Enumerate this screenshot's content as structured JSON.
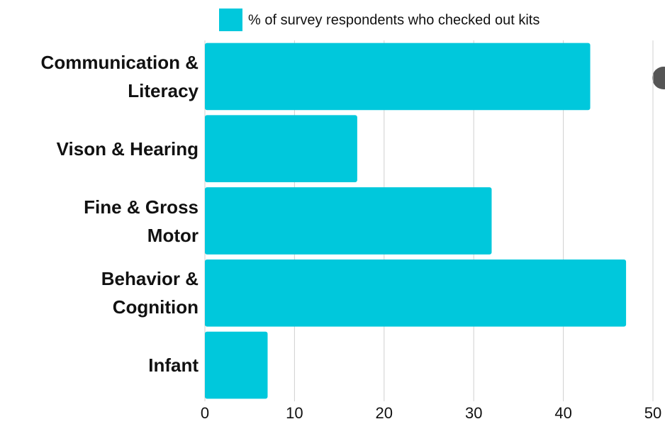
{
  "chart_data": {
    "type": "barh",
    "categories": [
      "Communication &\nLiteracy",
      "Vison & Hearing",
      "Fine & Gross\nMotor",
      "Behavior &\nCognition",
      "Infant"
    ],
    "series": [
      {
        "name": "% of survey respondents who checked out kits",
        "color": "#00c8dc",
        "values": [
          43,
          17,
          32,
          47,
          7
        ]
      }
    ],
    "xlim": [
      0,
      50
    ],
    "xticks": [
      0,
      10,
      20,
      30,
      40,
      50
    ],
    "grid": true,
    "legend": "top"
  }
}
